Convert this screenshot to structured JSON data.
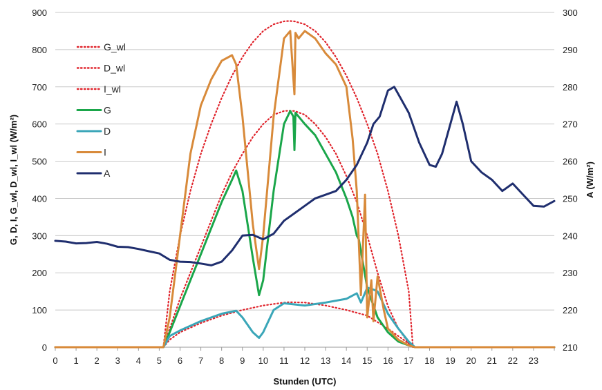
{
  "chart_data": {
    "type": "line",
    "title": "",
    "xlabel": "Stunden (UTC)",
    "ylabel_left": "G, D, I, G_wl, D_wl, I_wl (W/m²)",
    "ylabel_right": "A (W/m²)",
    "x_ticks": [
      "0",
      "1",
      "2",
      "3",
      "4",
      "5",
      "6",
      "7",
      "8",
      "9",
      "10",
      "11",
      "12",
      "13",
      "14",
      "15",
      "16",
      "17",
      "18",
      "19",
      "20",
      "21",
      "22",
      "23"
    ],
    "xlim": [
      0,
      24
    ],
    "ylim_left": [
      0,
      900
    ],
    "ylim_right": [
      210,
      300
    ],
    "y_ticks_left": [
      "0",
      "100",
      "200",
      "300",
      "400",
      "500",
      "600",
      "700",
      "800",
      "900"
    ],
    "y_ticks_right": [
      "210",
      "220",
      "230",
      "240",
      "250",
      "260",
      "270",
      "280",
      "290",
      "300"
    ],
    "grid": "horizontal",
    "legend_position": "top-left",
    "series": [
      {
        "name": "G_wl",
        "color": "#e0232b",
        "style": "dotted",
        "axis": "left",
        "x": [
          5.2,
          5.5,
          6,
          6.5,
          7,
          7.5,
          8,
          8.5,
          9,
          9.5,
          10,
          10.5,
          11,
          11.25,
          11.5,
          12,
          12.5,
          13,
          13.5,
          14,
          14.5,
          15,
          15.5,
          16,
          16.5,
          17,
          17.2
        ],
        "y": [
          0,
          150,
          300,
          420,
          520,
          600,
          670,
          730,
          780,
          820,
          850,
          868,
          876,
          877,
          876,
          868,
          850,
          820,
          780,
          730,
          670,
          600,
          520,
          420,
          300,
          150,
          0
        ]
      },
      {
        "name": "D_wl",
        "color": "#e0232b",
        "style": "dotted",
        "axis": "left",
        "x": [
          5.2,
          5.5,
          6,
          7,
          8,
          9,
          10,
          11,
          11.25,
          12,
          13,
          14,
          15,
          16,
          17,
          17.2
        ],
        "y": [
          0,
          20,
          40,
          65,
          85,
          100,
          112,
          120,
          121,
          120,
          112,
          100,
          85,
          50,
          10,
          0
        ]
      },
      {
        "name": "I_wl",
        "color": "#e0232b",
        "style": "dotted",
        "axis": "left",
        "x": [
          5.2,
          5.5,
          6,
          6.5,
          7,
          7.5,
          8,
          8.5,
          9,
          9.5,
          10,
          10.5,
          11,
          11.25,
          11.5,
          12,
          12.5,
          13,
          13.5,
          14,
          14.5,
          15,
          15.5,
          16,
          16.5,
          17,
          17.2
        ],
        "y": [
          0,
          50,
          130,
          200,
          270,
          340,
          410,
          470,
          520,
          565,
          600,
          625,
          635,
          636,
          635,
          625,
          600,
          565,
          520,
          460,
          390,
          300,
          200,
          110,
          50,
          10,
          0
        ]
      },
      {
        "name": "G",
        "color": "#1aa64a",
        "style": "solid",
        "axis": "left",
        "x": [
          0,
          5.2,
          5.5,
          6,
          6.5,
          7,
          7.5,
          8,
          8.5,
          8.7,
          9,
          9.5,
          9.8,
          10,
          10.5,
          11,
          11.3,
          11.45,
          11.5,
          11.55,
          12,
          12.5,
          13,
          13.5,
          14,
          14.3,
          14.5,
          14.6,
          15,
          15.5,
          16,
          16.5,
          17,
          17.3,
          24
        ],
        "y": [
          0,
          0,
          40,
          110,
          180,
          250,
          320,
          390,
          450,
          475,
          420,
          240,
          140,
          180,
          420,
          600,
          635,
          620,
          530,
          630,
          600,
          570,
          520,
          470,
          400,
          350,
          300,
          290,
          160,
          80,
          40,
          15,
          5,
          0,
          0
        ]
      },
      {
        "name": "D",
        "color": "#3aa6b8",
        "style": "solid",
        "axis": "left",
        "x": [
          0,
          5.2,
          5.5,
          6,
          7,
          8,
          8.7,
          9,
          9.5,
          9.8,
          10,
          10.5,
          11,
          11.5,
          12,
          13,
          14,
          14.5,
          14.7,
          15,
          15.3,
          15.5,
          16,
          16.5,
          17,
          17.3,
          24
        ],
        "y": [
          0,
          0,
          30,
          45,
          70,
          90,
          98,
          80,
          40,
          25,
          40,
          100,
          118,
          115,
          112,
          120,
          130,
          145,
          120,
          160,
          155,
          150,
          90,
          50,
          15,
          0,
          0
        ]
      },
      {
        "name": "I",
        "color": "#d88a3a",
        "style": "solid",
        "axis": "left",
        "x": [
          0,
          5.2,
          5.5,
          6,
          6.5,
          7,
          7.5,
          8,
          8.5,
          8.7,
          9,
          9.5,
          9.8,
          10,
          10.5,
          11,
          11.3,
          11.5,
          11.55,
          11.7,
          12,
          12.5,
          13,
          13.5,
          14,
          14.3,
          14.5,
          14.7,
          14.9,
          15,
          15.2,
          15.3,
          15.5,
          15.8,
          16,
          16.5,
          17,
          17.3,
          24
        ],
        "y": [
          0,
          0,
          80,
          300,
          520,
          650,
          720,
          770,
          785,
          760,
          620,
          330,
          210,
          300,
          620,
          830,
          850,
          680,
          845,
          830,
          850,
          830,
          790,
          760,
          700,
          560,
          420,
          140,
          410,
          80,
          180,
          70,
          190,
          100,
          50,
          20,
          5,
          0,
          0
        ]
      },
      {
        "name": "A",
        "color": "#1f2e6e",
        "style": "solid",
        "axis": "right",
        "x": [
          0,
          0.5,
          1,
          1.5,
          2,
          2.5,
          3,
          3.5,
          4,
          4.5,
          5,
          5.5,
          6,
          6.5,
          7,
          7.5,
          8,
          8.5,
          9,
          9.5,
          10,
          10.5,
          11,
          11.5,
          12,
          12.5,
          13,
          13.5,
          14,
          14.5,
          15,
          15.3,
          15.6,
          16,
          16.3,
          16.6,
          17,
          17.5,
          18,
          18.3,
          18.6,
          19,
          19.3,
          19.6,
          20,
          20.5,
          21,
          21.5,
          22,
          22.5,
          23,
          23.5,
          24
        ],
        "y": [
          238.6,
          238.4,
          237.9,
          238,
          238.3,
          237.8,
          237,
          236.9,
          236.4,
          235.8,
          235.2,
          233.5,
          233,
          232.9,
          232.5,
          232,
          233,
          236,
          240,
          240.2,
          239,
          240.5,
          244,
          246,
          248,
          250,
          251,
          252,
          255,
          259,
          265,
          270,
          272,
          279,
          280,
          277,
          273,
          265,
          259,
          258.5,
          262,
          270,
          276,
          270,
          260,
          257,
          255,
          252,
          254,
          251,
          248,
          247.8,
          249.3
        ]
      }
    ]
  }
}
